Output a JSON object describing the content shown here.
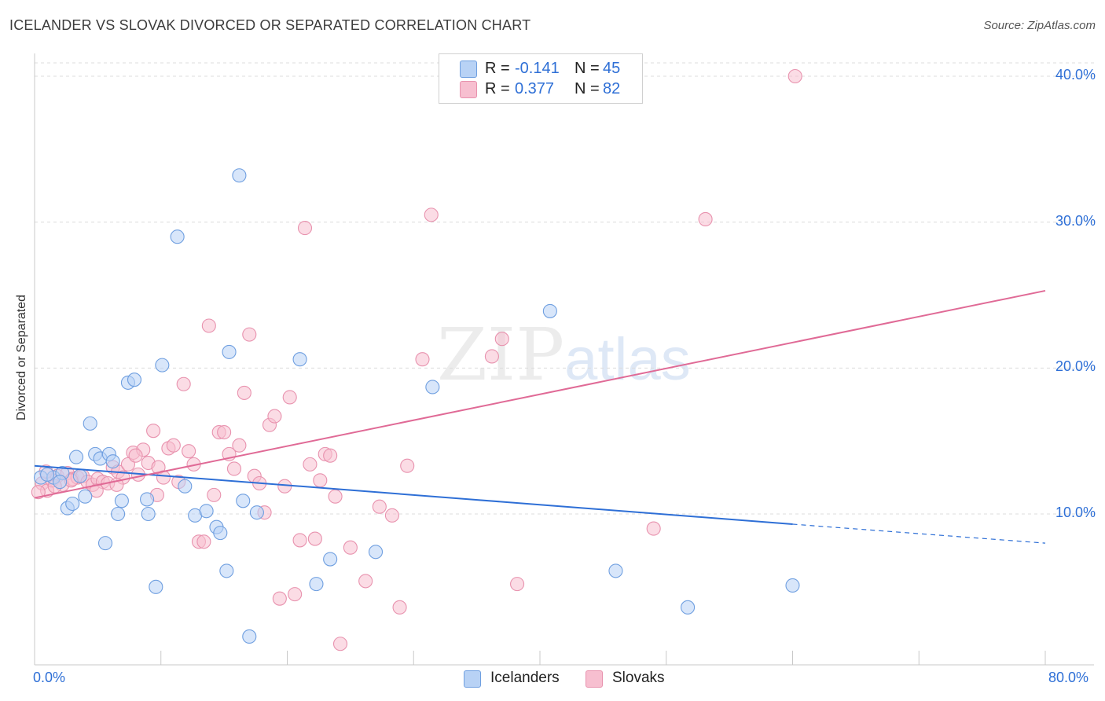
{
  "title": "ICELANDER VS SLOVAK DIVORCED OR SEPARATED CORRELATION CHART",
  "source": "Source: ZipAtlas.com",
  "watermark": {
    "zip": "ZIP",
    "atlas": "atlas"
  },
  "colors": {
    "blue": "#2e6fd6",
    "blue_fill": "#b8d2f5",
    "pink": "#e06a96",
    "pink_fill": "#f7bfd0",
    "grid": "#dcdcdc"
  },
  "legend": {
    "icelanders": {
      "r_label": "R =",
      "r_value": "-0.141",
      "n_label": "N =",
      "n_value": "45"
    },
    "slovaks": {
      "r_label": "R =",
      "r_value": "0.377",
      "n_label": "N =",
      "n_value": "82"
    }
  },
  "bottom_legend": {
    "icelanders": "Icelanders",
    "slovaks": "Slovaks"
  },
  "chart_data": {
    "type": "scatter",
    "title": "ICELANDER VS SLOVAK DIVORCED OR SEPARATED CORRELATION CHART",
    "xlabel": "",
    "ylabel": "Divorced or Separated",
    "xlim": [
      0,
      80
    ],
    "ylim": [
      0,
      40
    ],
    "x_tick_labels": [
      "0.0%",
      "80.0%"
    ],
    "y_ticks": [
      10,
      20,
      30,
      40
    ],
    "y_tick_labels": [
      "10.0%",
      "20.0%",
      "30.0%",
      "40.0%"
    ],
    "grid": true,
    "series": [
      {
        "name": "Icelanders",
        "trend": {
          "x0": 0,
          "y0": 13.3,
          "x1": 60,
          "y1": 9.3,
          "x_dash_end": 80,
          "y_dash_end": 8.0
        },
        "points": [
          [
            0.5,
            12.5
          ],
          [
            1.5,
            12.5
          ],
          [
            2.2,
            12.8
          ],
          [
            2.6,
            10.4
          ],
          [
            3.0,
            10.7
          ],
          [
            3.3,
            13.9
          ],
          [
            3.6,
            12.6
          ],
          [
            4.0,
            11.2
          ],
          [
            4.4,
            16.2
          ],
          [
            4.8,
            14.1
          ],
          [
            5.2,
            13.8
          ],
          [
            5.6,
            8.0
          ],
          [
            5.9,
            14.1
          ],
          [
            6.2,
            13.6
          ],
          [
            6.6,
            10.0
          ],
          [
            6.9,
            10.9
          ],
          [
            7.4,
            19.0
          ],
          [
            7.9,
            19.2
          ],
          [
            8.9,
            11.0
          ],
          [
            9.0,
            10.0
          ],
          [
            9.6,
            5.0
          ],
          [
            10.1,
            20.2
          ],
          [
            11.3,
            29.0
          ],
          [
            11.9,
            11.9
          ],
          [
            12.7,
            9.9
          ],
          [
            13.6,
            10.2
          ],
          [
            14.4,
            9.1
          ],
          [
            14.7,
            8.7
          ],
          [
            15.2,
            6.1
          ],
          [
            15.4,
            21.1
          ],
          [
            16.2,
            33.2
          ],
          [
            16.5,
            10.9
          ],
          [
            17.0,
            1.6
          ],
          [
            17.6,
            10.1
          ],
          [
            21.0,
            20.6
          ],
          [
            22.3,
            5.2
          ],
          [
            23.4,
            6.9
          ],
          [
            27.0,
            7.4
          ],
          [
            31.5,
            18.7
          ],
          [
            40.8,
            23.9
          ],
          [
            46.0,
            6.1
          ],
          [
            51.7,
            3.6
          ],
          [
            60.0,
            5.1
          ],
          [
            1.0,
            12.7
          ],
          [
            2.0,
            12.2
          ]
        ]
      },
      {
        "name": "Slovaks",
        "trend": {
          "x0": 0,
          "y0": 11.1,
          "x1": 80,
          "y1": 25.3
        },
        "points": [
          [
            0.6,
            12.1
          ],
          [
            1.0,
            11.6
          ],
          [
            1.4,
            12.3
          ],
          [
            1.8,
            12.6
          ],
          [
            2.2,
            12.0
          ],
          [
            2.6,
            12.8
          ],
          [
            3.0,
            12.4
          ],
          [
            3.4,
            12.5
          ],
          [
            3.8,
            12.6
          ],
          [
            4.2,
            12.2
          ],
          [
            4.6,
            12.0
          ],
          [
            5.0,
            12.4
          ],
          [
            5.4,
            12.2
          ],
          [
            5.8,
            12.1
          ],
          [
            6.2,
            13.2
          ],
          [
            6.6,
            12.9
          ],
          [
            7.0,
            12.5
          ],
          [
            7.4,
            13.4
          ],
          [
            7.8,
            14.2
          ],
          [
            8.2,
            12.7
          ],
          [
            8.6,
            14.4
          ],
          [
            9.0,
            13.5
          ],
          [
            9.4,
            15.7
          ],
          [
            9.8,
            13.2
          ],
          [
            10.2,
            12.5
          ],
          [
            10.6,
            14.5
          ],
          [
            11.0,
            14.7
          ],
          [
            11.4,
            12.2
          ],
          [
            11.8,
            18.9
          ],
          [
            12.2,
            14.3
          ],
          [
            12.6,
            13.4
          ],
          [
            13.0,
            8.1
          ],
          [
            13.4,
            8.1
          ],
          [
            13.8,
            22.9
          ],
          [
            14.2,
            11.3
          ],
          [
            14.6,
            15.6
          ],
          [
            15.0,
            15.6
          ],
          [
            15.4,
            14.1
          ],
          [
            15.8,
            13.1
          ],
          [
            16.2,
            14.7
          ],
          [
            16.6,
            18.3
          ],
          [
            17.0,
            22.3
          ],
          [
            17.4,
            12.6
          ],
          [
            17.8,
            12.1
          ],
          [
            18.2,
            10.1
          ],
          [
            18.6,
            16.1
          ],
          [
            19.0,
            16.7
          ],
          [
            19.4,
            4.2
          ],
          [
            19.8,
            11.9
          ],
          [
            20.2,
            18.0
          ],
          [
            20.6,
            4.5
          ],
          [
            21.0,
            8.2
          ],
          [
            21.4,
            29.6
          ],
          [
            21.8,
            13.4
          ],
          [
            22.2,
            8.3
          ],
          [
            22.6,
            12.3
          ],
          [
            23.0,
            14.1
          ],
          [
            23.4,
            14.0
          ],
          [
            23.8,
            11.2
          ],
          [
            24.2,
            1.1
          ],
          [
            25.0,
            7.7
          ],
          [
            26.2,
            5.4
          ],
          [
            27.3,
            10.5
          ],
          [
            28.3,
            9.9
          ],
          [
            28.9,
            3.6
          ],
          [
            29.5,
            13.3
          ],
          [
            30.7,
            20.6
          ],
          [
            31.4,
            30.5
          ],
          [
            36.2,
            20.8
          ],
          [
            37.0,
            22.0
          ],
          [
            38.2,
            5.2
          ],
          [
            49.0,
            9.0
          ],
          [
            53.1,
            30.2
          ],
          [
            60.2,
            40.0
          ],
          [
            0.3,
            11.5
          ],
          [
            0.9,
            12.9
          ],
          [
            1.6,
            11.9
          ],
          [
            2.9,
            12.3
          ],
          [
            4.9,
            11.6
          ],
          [
            6.5,
            12.0
          ],
          [
            8.0,
            14.0
          ],
          [
            9.7,
            11.3
          ]
        ]
      }
    ]
  }
}
